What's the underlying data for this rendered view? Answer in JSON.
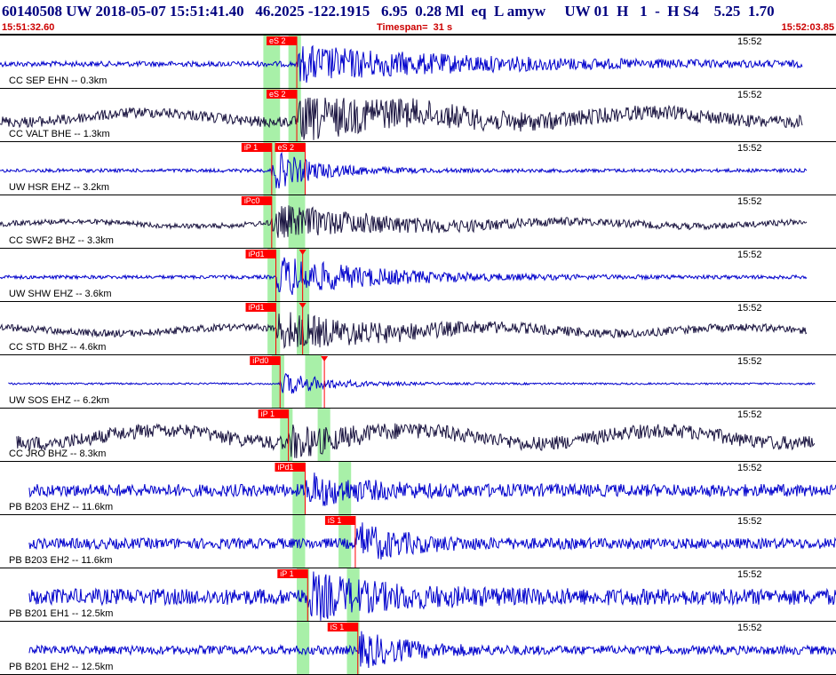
{
  "header": {
    "title": "60140508 UW 2018-05-07 15:51:41.40   46.2025 -122.1915   6.95  0.28 Ml  eq  L amyw     UW 01  H   1  -  H S4    5.25  1.70",
    "start_time": "15:51:32.60",
    "timespan": "Timespan=  31 s",
    "end_time": "15:52:03.85"
  },
  "colors": {
    "trace_blue": "#0000cc",
    "trace_dark": "#1a1440",
    "pick_red": "#ff0000",
    "window_green": "#a8f0a8",
    "header_red": "#cc0000"
  },
  "panels": [
    {
      "label": "CC SEP EHN -- 0.3km",
      "time": "15:52",
      "color": "blue",
      "amp": 20,
      "noise": 3,
      "tstart": 0.0,
      "tend": 0.96,
      "onset": 0.355,
      "dur": 0.45,
      "picks": [
        {
          "label": "eS 2",
          "t": 0.355
        }
      ],
      "greens": [
        [
          0.315,
          0.335
        ],
        [
          0.345,
          0.36
        ]
      ]
    },
    {
      "label": "CC VALT BHE -- 1.3km",
      "time": "15:52",
      "color": "dark",
      "amp": 22,
      "noise": 6,
      "tstart": 0.0,
      "tend": 0.96,
      "onset": 0.355,
      "dur": 0.4,
      "picks": [
        {
          "label": "eS 2",
          "t": 0.355
        }
      ],
      "greens": [
        [
          0.315,
          0.335
        ],
        [
          0.345,
          0.36
        ]
      ]
    },
    {
      "label": "UW HSR EHZ -- 3.2km",
      "time": "15:52",
      "color": "blue",
      "amp": 22,
      "noise": 2,
      "tstart": 0.0,
      "tend": 0.965,
      "onset": 0.325,
      "dur": 0.12,
      "picks": [
        {
          "label": "iP 1",
          "t": 0.325
        },
        {
          "label": "eS 2",
          "t": 0.365
        }
      ],
      "greens": [
        [
          0.315,
          0.33
        ],
        [
          0.345,
          0.365
        ]
      ]
    },
    {
      "label": "CC SWF2 BHZ -- 3.3km",
      "time": "15:52",
      "color": "dark",
      "amp": 18,
      "noise": 3,
      "tstart": 0.0,
      "tend": 0.965,
      "onset": 0.325,
      "dur": 0.35,
      "picks": [
        {
          "label": "iPc0",
          "t": 0.325
        }
      ],
      "greens": [
        [
          0.315,
          0.33
        ],
        [
          0.345,
          0.365
        ]
      ]
    },
    {
      "label": "UW SHW EHZ -- 3.6km",
      "time": "15:52",
      "color": "blue",
      "amp": 24,
      "noise": 2,
      "tstart": 0.0,
      "tend": 0.965,
      "onset": 0.33,
      "dur": 0.25,
      "picks": [
        {
          "label": "iPd1",
          "t": 0.33
        },
        {
          "label": "",
          "t": 0.362
        }
      ],
      "greens": [
        [
          0.32,
          0.335
        ],
        [
          0.355,
          0.37
        ]
      ]
    },
    {
      "label": "CC STD BHZ -- 4.6km",
      "time": "15:52",
      "color": "dark",
      "amp": 20,
      "noise": 4,
      "tstart": 0.0,
      "tend": 0.965,
      "onset": 0.33,
      "dur": 0.3,
      "picks": [
        {
          "label": "iPd1",
          "t": 0.33
        },
        {
          "label": "",
          "t": 0.362
        }
      ],
      "greens": [
        [
          0.32,
          0.335
        ],
        [
          0.355,
          0.37
        ]
      ]
    },
    {
      "label": "UW SOS EHZ -- 6.2km",
      "time": "15:52",
      "color": "blue",
      "amp": 14,
      "noise": 1,
      "tstart": 0.01,
      "tend": 0.975,
      "onset": 0.335,
      "dur": 0.12,
      "picks": [
        {
          "label": "iPd0",
          "t": 0.335
        },
        {
          "label": "",
          "t": 0.388
        }
      ],
      "greens": [
        [
          0.325,
          0.34
        ],
        [
          0.365,
          0.385
        ]
      ]
    },
    {
      "label": "CC JRO BHZ -- 8.3km",
      "time": "15:52",
      "color": "dark",
      "amp": 16,
      "noise": 8,
      "tstart": 0.02,
      "tend": 0.975,
      "onset": 0.345,
      "dur": 0.12,
      "picks": [
        {
          "label": "iP 1",
          "t": 0.345
        }
      ],
      "greens": [
        [
          0.335,
          0.35
        ],
        [
          0.38,
          0.395
        ]
      ]
    },
    {
      "label": "PB B203 EHZ -- 11.6km",
      "time": "15:52",
      "color": "blue",
      "amp": 16,
      "noise": 7,
      "tstart": 0.035,
      "tend": 1.0,
      "onset": 0.365,
      "dur": 0.15,
      "picks": [
        {
          "label": "iPd1",
          "t": 0.365
        }
      ],
      "greens": [
        [
          0.35,
          0.365
        ],
        [
          0.405,
          0.42
        ]
      ]
    },
    {
      "label": "PB B203 EH2 -- 11.6km",
      "time": "15:52",
      "color": "blue",
      "amp": 22,
      "noise": 6,
      "tstart": 0.035,
      "tend": 1.0,
      "onset": 0.425,
      "dur": 0.12,
      "picks": [
        {
          "label": "iS 1",
          "t": 0.425
        }
      ],
      "greens": [
        [
          0.35,
          0.365
        ],
        [
          0.405,
          0.42
        ]
      ]
    },
    {
      "label": "PB B201 EH1 -- 12.5km",
      "time": "15:52",
      "color": "blue",
      "amp": 22,
      "noise": 9,
      "tstart": 0.035,
      "tend": 1.0,
      "onset": 0.368,
      "dur": 0.2,
      "picks": [
        {
          "label": "iP 1",
          "t": 0.368
        }
      ],
      "greens": [
        [
          0.355,
          0.37
        ],
        [
          0.415,
          0.43
        ]
      ]
    },
    {
      "label": "PB B201 EH2 -- 12.5km",
      "time": "15:52",
      "color": "blue",
      "amp": 20,
      "noise": 5,
      "tstart": 0.035,
      "tend": 1.0,
      "onset": 0.428,
      "dur": 0.12,
      "picks": [
        {
          "label": "iS 1",
          "t": 0.428
        }
      ],
      "greens": [
        [
          0.355,
          0.37
        ],
        [
          0.415,
          0.43
        ]
      ]
    }
  ]
}
